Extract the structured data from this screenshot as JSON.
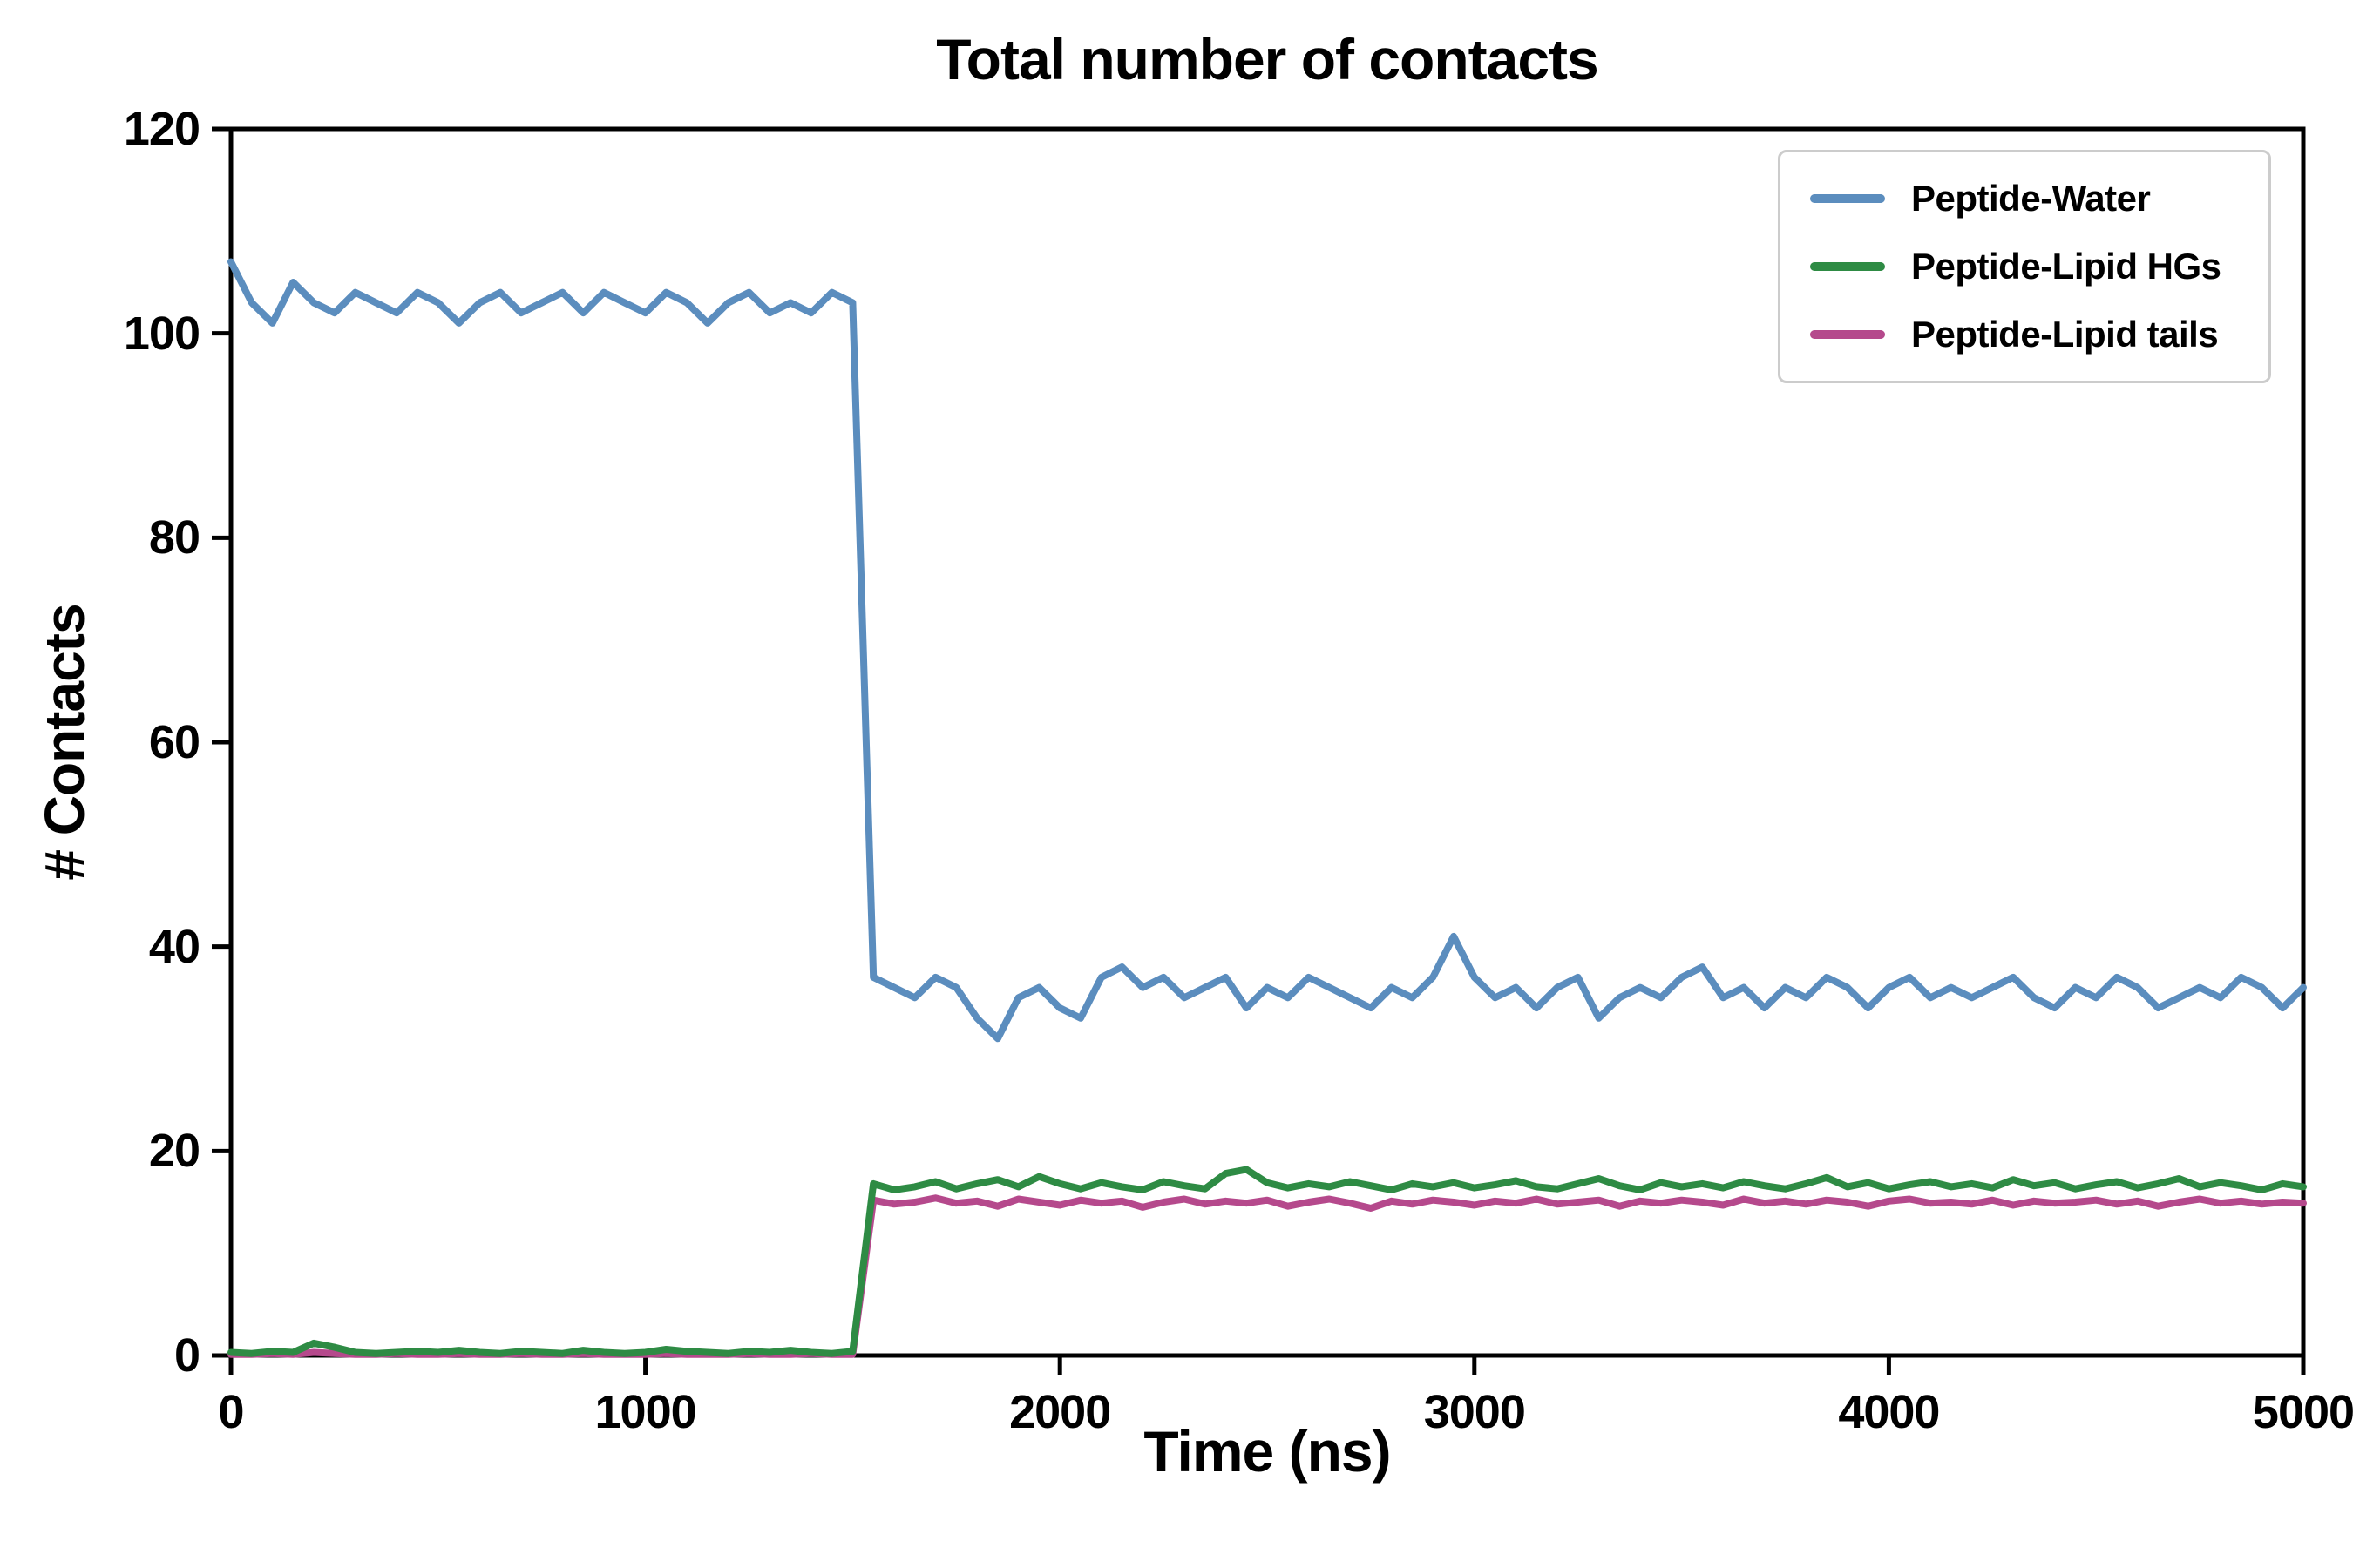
{
  "chart_data": {
    "type": "line",
    "title": "Total number of contacts",
    "xlabel": "Time (ns)",
    "ylabel": "# Contacts",
    "xlim": [
      0,
      5000
    ],
    "ylim": [
      0,
      120
    ],
    "x_ticks": [
      0,
      1000,
      2000,
      3000,
      4000,
      5000
    ],
    "y_ticks": [
      0,
      20,
      40,
      60,
      80,
      100,
      120
    ],
    "grid": false,
    "legend_position": "upper right",
    "axis_color": "#000000",
    "x_start": 0,
    "x_step": 50,
    "series": [
      {
        "key": "peptide-water",
        "name": "Peptide-Water",
        "color": "#5b8dbe",
        "values": [
          107,
          103,
          101,
          105,
          103,
          102,
          104,
          103,
          102,
          104,
          103,
          101,
          103,
          104,
          102,
          103,
          104,
          102,
          104,
          103,
          102,
          104,
          103,
          101,
          103,
          104,
          102,
          103,
          102,
          104,
          103,
          37,
          36,
          35,
          37,
          36,
          33,
          31,
          35,
          36,
          34,
          33,
          37,
          38,
          36,
          37,
          35,
          36,
          37,
          34,
          36,
          35,
          37,
          36,
          35,
          34,
          36,
          35,
          37,
          41,
          37,
          35,
          36,
          34,
          36,
          37,
          33,
          35,
          36,
          35,
          37,
          38,
          35,
          36,
          34,
          36,
          35,
          37,
          36,
          34,
          36,
          37,
          35,
          36,
          35,
          36,
          37,
          35,
          34,
          36,
          35,
          37,
          36,
          34,
          35,
          36,
          35,
          37,
          36,
          34,
          36
        ]
      },
      {
        "key": "peptide-lipid-hgs",
        "name": "Peptide-Lipid HGs",
        "color": "#2e8b44",
        "values": [
          0.3,
          0.2,
          0.4,
          0.3,
          1.2,
          0.8,
          0.3,
          0.2,
          0.3,
          0.4,
          0.3,
          0.5,
          0.3,
          0.2,
          0.4,
          0.3,
          0.2,
          0.5,
          0.3,
          0.2,
          0.3,
          0.6,
          0.4,
          0.3,
          0.2,
          0.4,
          0.3,
          0.5,
          0.3,
          0.2,
          0.4,
          16.8,
          16.2,
          16.5,
          17,
          16.3,
          16.8,
          17.2,
          16.5,
          17.5,
          16.8,
          16.3,
          16.9,
          16.5,
          16.2,
          17,
          16.6,
          16.3,
          17.8,
          18.2,
          16.9,
          16.4,
          16.8,
          16.5,
          17,
          16.6,
          16.2,
          16.8,
          16.5,
          16.9,
          16.4,
          16.7,
          17.1,
          16.5,
          16.3,
          16.8,
          17.3,
          16.6,
          16.2,
          16.9,
          16.5,
          16.8,
          16.4,
          17,
          16.6,
          16.3,
          16.8,
          17.4,
          16.5,
          16.9,
          16.3,
          16.7,
          17,
          16.5,
          16.8,
          16.4,
          17.2,
          16.6,
          16.9,
          16.3,
          16.7,
          17,
          16.4,
          16.8,
          17.3,
          16.5,
          16.9,
          16.6,
          16.2,
          16.8,
          16.5
        ]
      },
      {
        "key": "peptide-lipid-tails",
        "name": "Peptide-Lipid tails",
        "color": "#b5498c",
        "values": [
          0.1,
          0.1,
          0.2,
          0.1,
          0.3,
          0.2,
          0.1,
          0.1,
          0.2,
          0.1,
          0.1,
          0.2,
          0.1,
          0.1,
          0.2,
          0.1,
          0.1,
          0.2,
          0.1,
          0.1,
          0.1,
          0.2,
          0.1,
          0.1,
          0.1,
          0.2,
          0.1,
          0.1,
          0.2,
          0.1,
          0.1,
          15.2,
          14.8,
          15,
          15.4,
          14.9,
          15.1,
          14.6,
          15.3,
          15,
          14.7,
          15.2,
          14.9,
          15.1,
          14.5,
          15,
          15.3,
          14.8,
          15.1,
          14.9,
          15.2,
          14.6,
          15,
          15.3,
          14.9,
          14.4,
          15.1,
          14.8,
          15.2,
          15,
          14.7,
          15.1,
          14.9,
          15.3,
          14.8,
          15,
          15.2,
          14.6,
          15.1,
          14.9,
          15.2,
          15,
          14.7,
          15.3,
          14.9,
          15.1,
          14.8,
          15.2,
          15,
          14.6,
          15.1,
          15.3,
          14.9,
          15,
          14.8,
          15.2,
          14.7,
          15.1,
          14.9,
          15,
          15.2,
          14.8,
          15.1,
          14.6,
          15,
          15.3,
          14.9,
          15.1,
          14.8,
          15,
          14.9
        ]
      }
    ]
  }
}
